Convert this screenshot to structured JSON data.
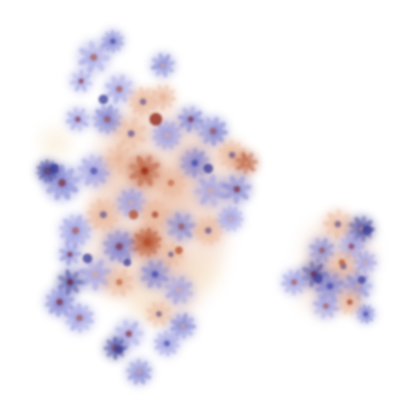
{
  "image": {
    "subject": "",
    "background_color": "#ffffff",
    "palette": {
      "lavender": "#9a9ae0",
      "periwinkle": "#7d7fd0",
      "indigo": "#3b3b96",
      "peach": "#e8b79c",
      "rust": "#b5512f",
      "deep_red": "#8c1a10",
      "cream": "#f7e7cc"
    },
    "clusters": [
      {
        "name": "large-flower-cluster"
      },
      {
        "name": "small-flower-cluster"
      }
    ]
  }
}
